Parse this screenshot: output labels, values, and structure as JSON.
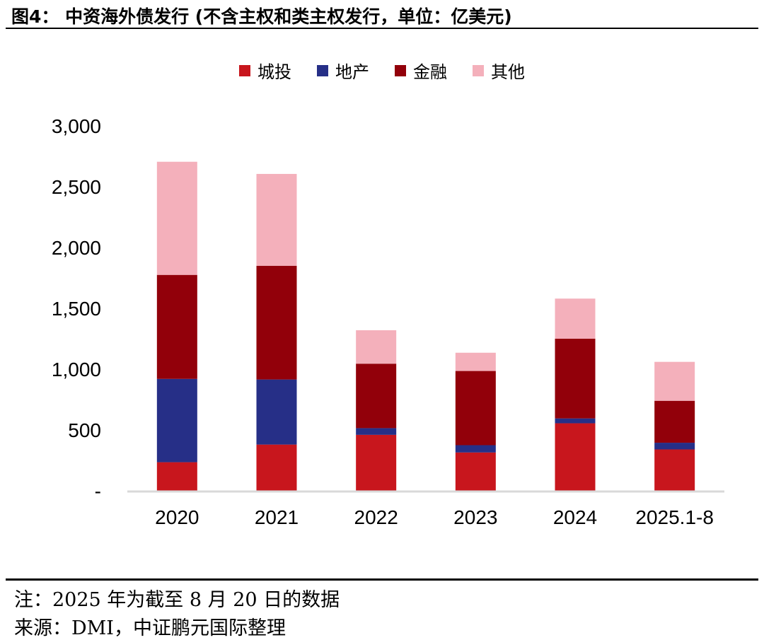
{
  "header": {
    "title": "图4： 中资海外债发行 (不含主权和类主权发行，单位：亿美元)"
  },
  "chart_data": {
    "type": "bar",
    "stacked": true,
    "categories": [
      "2020",
      "2021",
      "2022",
      "2023",
      "2024",
      "2025.1-8"
    ],
    "series": [
      {
        "name": "城投",
        "color": "#c8161d",
        "values": [
          235,
          380,
          460,
          315,
          555,
          340
        ]
      },
      {
        "name": "地产",
        "color": "#262f87",
        "values": [
          685,
          535,
          55,
          60,
          40,
          55
        ]
      },
      {
        "name": "金融",
        "color": "#92000a",
        "values": [
          855,
          935,
          530,
          610,
          655,
          345
        ]
      },
      {
        "name": "其他",
        "color": "#f4b0bb",
        "values": [
          930,
          755,
          275,
          150,
          330,
          320
        ]
      }
    ],
    "ylim": [
      0,
      3000
    ],
    "yticks": [
      0,
      500,
      1000,
      1500,
      2000,
      2500,
      3000
    ],
    "ytick_labels": [
      "-",
      "500",
      "1,000",
      "1,500",
      "2,000",
      "2,500",
      "3,000"
    ],
    "legend_position": "top-center",
    "grid": false,
    "axis_color": "#d9d9d9"
  },
  "footer": {
    "note": "注：2025 年为截至 8 月 20 日的数据",
    "source": "来源：DMI，中证鹏元国际整理"
  }
}
